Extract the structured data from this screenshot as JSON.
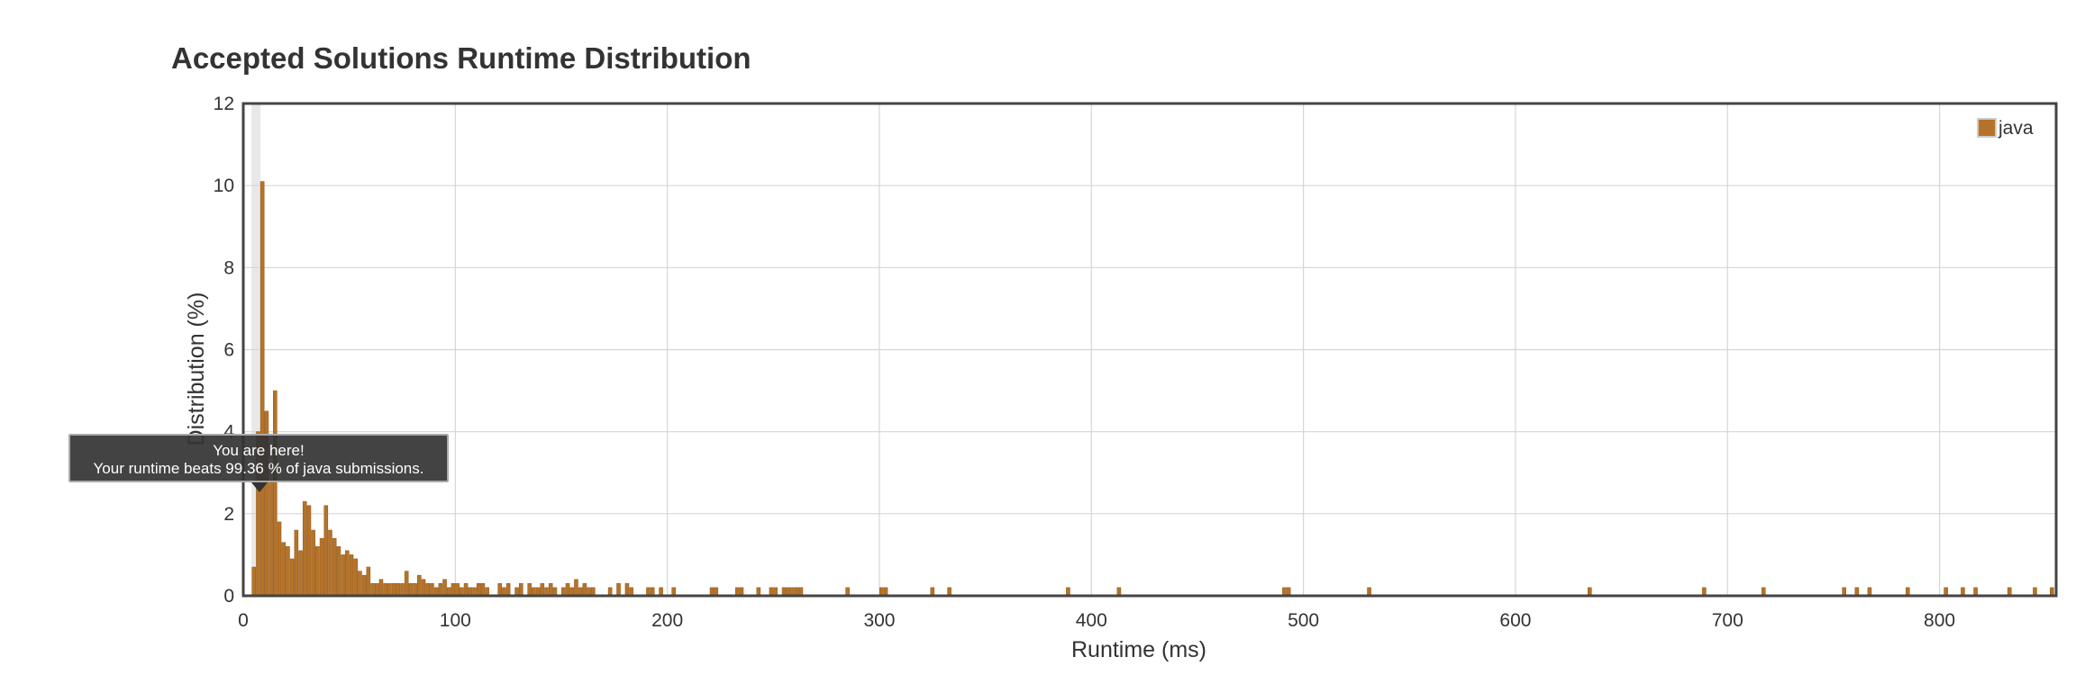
{
  "page_title": "Accepted Solutions Runtime Distribution",
  "tooltip": {
    "line1": "You are here!",
    "line2": "Your runtime beats 99.36 % of java submissions."
  },
  "colors": {
    "bar": "#b5732a",
    "bar_stroke": "#9a5f1e",
    "grid": "#d6d6d6",
    "frame": "#444444",
    "highlight": "#e8e8e8"
  },
  "chart_data": {
    "type": "bar",
    "title": "Accepted Solutions Runtime Distribution",
    "xlabel": "Runtime (ms)",
    "ylabel": "Distribution (%)",
    "xlim": [
      0,
      855
    ],
    "ylim": [
      0,
      12
    ],
    "xticks": [
      0,
      100,
      200,
      300,
      400,
      500,
      600,
      700,
      800
    ],
    "yticks": [
      0,
      2,
      4,
      6,
      8,
      10,
      12
    ],
    "grid": true,
    "legend": "top-right",
    "highlight_x": 6,
    "series": [
      {
        "name": "java",
        "x": [
          5,
          7,
          9,
          11,
          13,
          15,
          17,
          19,
          21,
          23,
          25,
          27,
          29,
          31,
          33,
          35,
          37,
          39,
          41,
          43,
          45,
          47,
          49,
          51,
          53,
          55,
          57,
          59,
          61,
          63,
          65,
          67,
          69,
          71,
          73,
          75,
          77,
          79,
          81,
          83,
          85,
          87,
          89,
          91,
          93,
          95,
          97,
          99,
          101,
          103,
          105,
          107,
          109,
          111,
          113,
          115,
          121,
          123,
          125,
          129,
          131,
          135,
          137,
          139,
          141,
          143,
          145,
          147,
          151,
          153,
          155,
          157,
          159,
          161,
          163,
          165,
          173,
          177,
          181,
          183,
          191,
          193,
          197,
          203,
          221,
          223,
          233,
          235,
          243,
          249,
          251,
          255,
          257,
          259,
          261,
          263,
          285,
          301,
          303,
          325,
          333,
          389,
          413,
          491,
          493,
          531,
          635,
          689,
          717,
          755,
          761,
          767,
          785,
          803,
          811,
          817,
          833,
          845,
          853
        ],
        "values": [
          0.7,
          4.0,
          10.1,
          4.5,
          2.8,
          5.0,
          1.8,
          1.3,
          1.2,
          0.9,
          1.6,
          1.1,
          2.3,
          2.2,
          1.6,
          1.2,
          1.4,
          2.2,
          1.6,
          1.4,
          1.2,
          1.0,
          1.1,
          1.0,
          0.9,
          0.6,
          0.5,
          0.7,
          0.3,
          0.3,
          0.4,
          0.3,
          0.3,
          0.3,
          0.3,
          0.3,
          0.6,
          0.3,
          0.3,
          0.5,
          0.4,
          0.3,
          0.3,
          0.2,
          0.3,
          0.4,
          0.2,
          0.3,
          0.3,
          0.2,
          0.3,
          0.2,
          0.2,
          0.3,
          0.3,
          0.2,
          0.3,
          0.2,
          0.3,
          0.2,
          0.3,
          0.3,
          0.2,
          0.2,
          0.3,
          0.2,
          0.3,
          0.2,
          0.2,
          0.3,
          0.2,
          0.4,
          0.2,
          0.3,
          0.2,
          0.2,
          0.2,
          0.3,
          0.3,
          0.2,
          0.2,
          0.2,
          0.2,
          0.2,
          0.2,
          0.2,
          0.2,
          0.2,
          0.2,
          0.2,
          0.2,
          0.2,
          0.2,
          0.2,
          0.2,
          0.2,
          0.2,
          0.2,
          0.2,
          0.2,
          0.2,
          0.2,
          0.2,
          0.2,
          0.2,
          0.2,
          0.2,
          0.2,
          0.2,
          0.2,
          0.2,
          0.2,
          0.2,
          0.2,
          0.2,
          0.2,
          0.2,
          0.2,
          0.2
        ]
      }
    ]
  }
}
